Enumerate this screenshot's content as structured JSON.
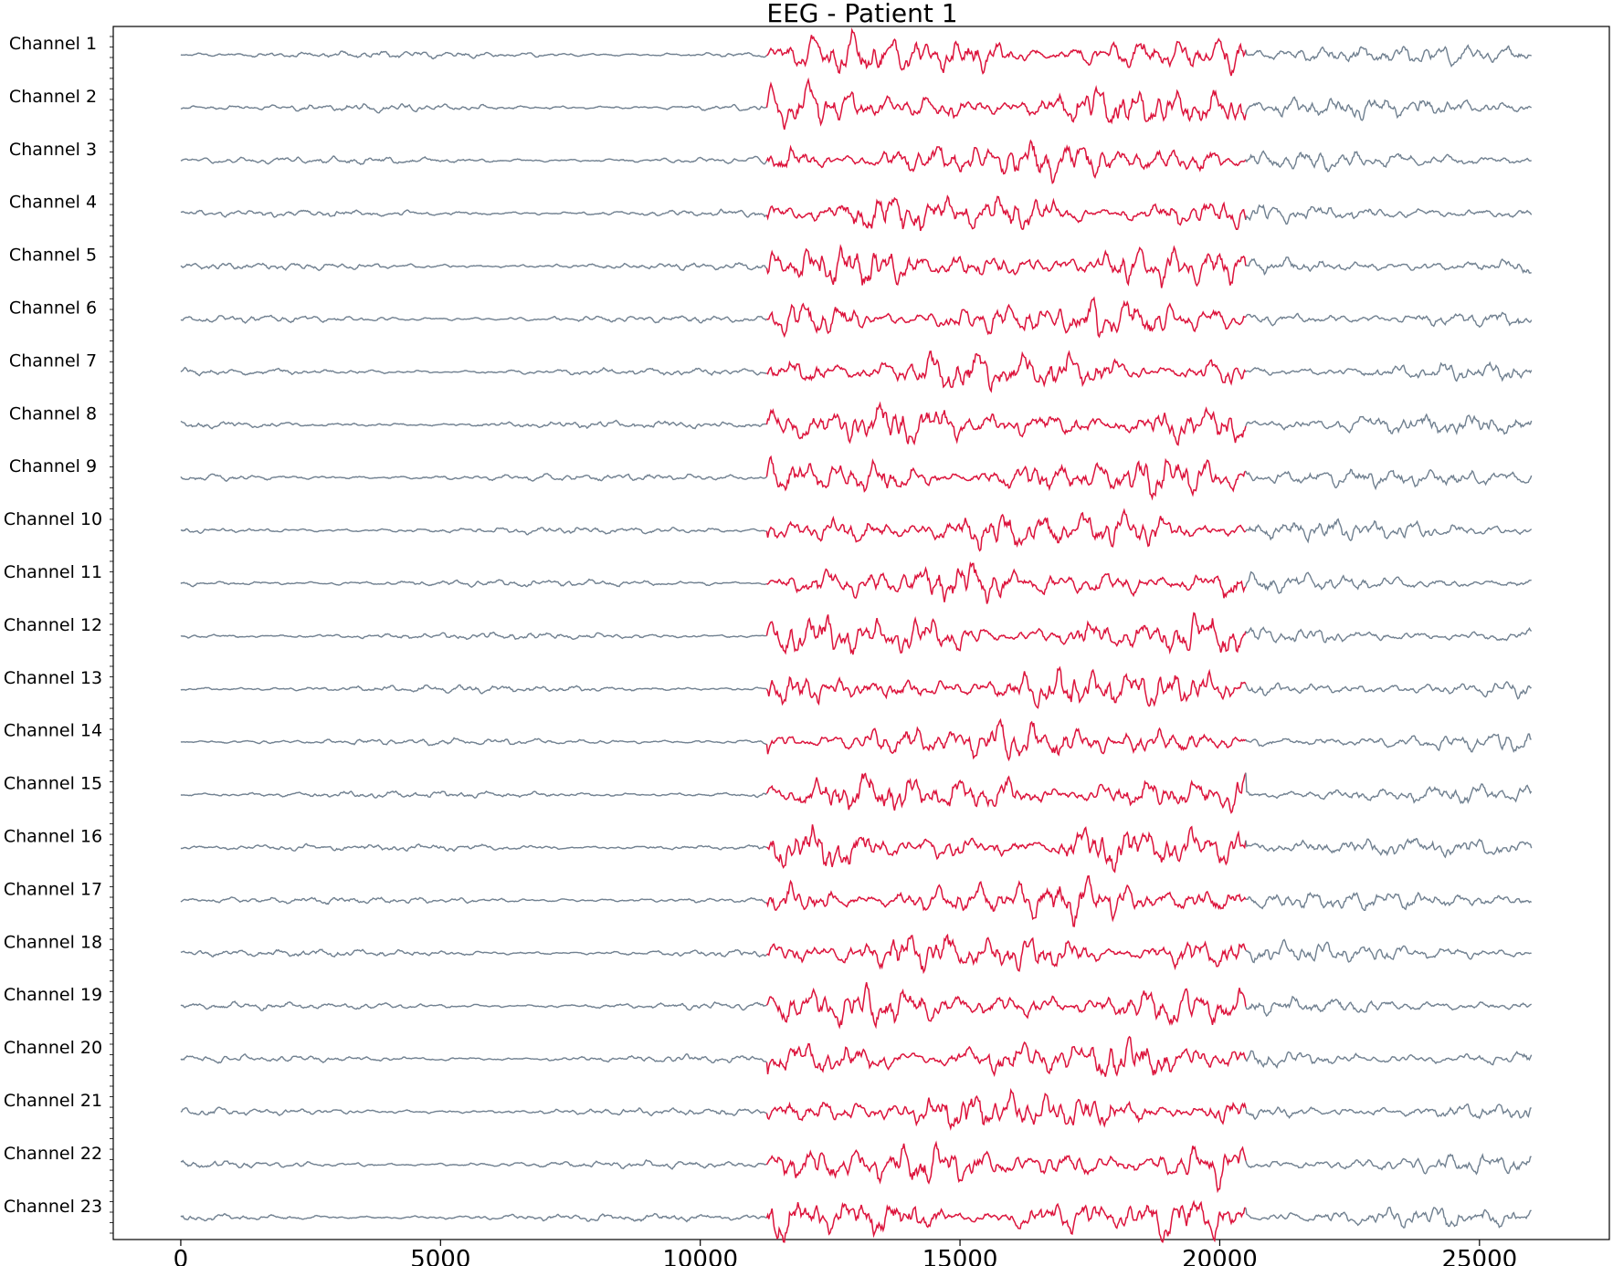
{
  "chart_data": {
    "type": "line",
    "title": "EEG - Patient 1",
    "xlabel": "",
    "ylabel": "",
    "xlim": [
      -1300,
      27500
    ],
    "xticks": [
      0,
      5000,
      10000,
      15000,
      20000,
      25000
    ],
    "x_tick_labels": [
      "0",
      "5000",
      "10000",
      "15000",
      "20000",
      "25000"
    ],
    "sample_range": [
      0,
      26000
    ],
    "seizure_interval": [
      11300,
      20500
    ],
    "colors": {
      "normal": "#708090",
      "seizure": "#dc143c",
      "axes": "#000000"
    },
    "grid": false,
    "legend": "none",
    "series": [
      {
        "name": "Channel 1"
      },
      {
        "name": "Channel 2"
      },
      {
        "name": "Channel 3"
      },
      {
        "name": "Channel 4"
      },
      {
        "name": "Channel 5"
      },
      {
        "name": "Channel 6"
      },
      {
        "name": "Channel 7"
      },
      {
        "name": "Channel 8"
      },
      {
        "name": "Channel 9"
      },
      {
        "name": "Channel 10"
      },
      {
        "name": "Channel 11"
      },
      {
        "name": "Channel 12"
      },
      {
        "name": "Channel 13"
      },
      {
        "name": "Channel 14"
      },
      {
        "name": "Channel 15"
      },
      {
        "name": "Channel 16"
      },
      {
        "name": "Channel 17"
      },
      {
        "name": "Channel 18"
      },
      {
        "name": "Channel 19"
      },
      {
        "name": "Channel 20"
      },
      {
        "name": "Channel 21"
      },
      {
        "name": "Channel 22"
      },
      {
        "name": "Channel 23"
      }
    ]
  }
}
